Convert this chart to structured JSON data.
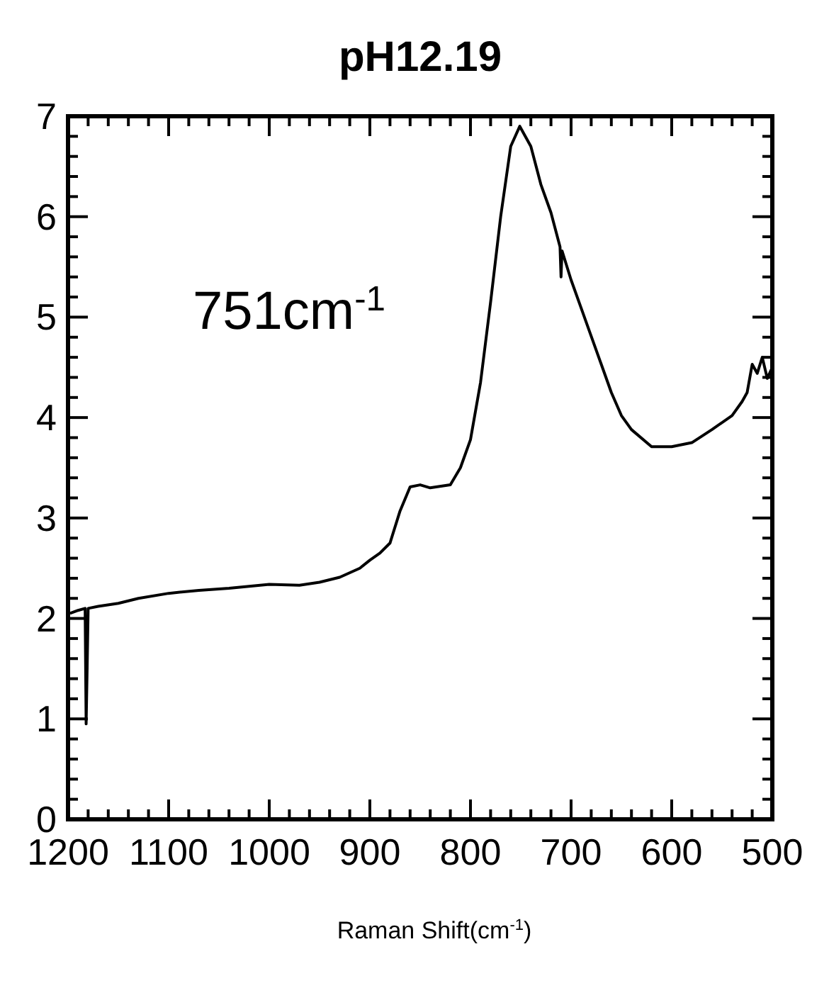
{
  "chart_data": {
    "type": "line",
    "title": "pH12.19",
    "xlabel": "Raman Shift(cm$^{-1}$)",
    "annotations": [
      "751cm$^{-1}$"
    ],
    "xlim": [
      1200,
      500
    ],
    "xticks": [
      1200,
      {
        "value": 1180,
        "label": null
      },
      {
        "value": 1160,
        "label": null
      },
      {
        "value": 1140,
        "label": null
      },
      {
        "value": 1120,
        "label": null
      },
      1100,
      {
        "value": 1080,
        "label": null
      },
      {
        "value": 1060,
        "label": null
      },
      {
        "value": 1040,
        "label": null
      },
      {
        "value": 1020,
        "label": null
      },
      1000,
      {
        "value": 980,
        "label": null
      },
      {
        "value": 960,
        "label": null
      },
      {
        "value": 940,
        "label": null
      },
      {
        "value": 920,
        "label": null
      },
      900,
      {
        "value": 880,
        "label": null
      },
      {
        "value": 860,
        "label": null
      },
      {
        "value": 840,
        "label": null
      },
      {
        "value": 820,
        "label": null
      },
      800,
      {
        "value": 780,
        "label": null
      },
      {
        "value": 760,
        "label": null
      },
      {
        "value": 740,
        "label": null
      },
      {
        "value": 720,
        "label": null
      },
      700,
      {
        "value": 680,
        "label": null
      },
      {
        "value": 660,
        "label": null
      },
      {
        "value": 640,
        "label": null
      },
      {
        "value": 620,
        "label": null
      },
      600,
      {
        "value": 580,
        "label": null
      },
      {
        "value": 560,
        "label": null
      },
      {
        "value": 540,
        "label": null
      },
      {
        "value": 520,
        "label": null
      },
      500
    ],
    "ylim": [
      0,
      7
    ],
    "yticks": [
      0,
      {
        "value": 0.2,
        "label": null
      },
      {
        "value": 0.4,
        "label": null
      },
      {
        "value": 0.6,
        "label": null
      },
      {
        "value": 0.8,
        "label": null
      },
      1,
      {
        "value": 1.2,
        "label": null
      },
      {
        "value": 1.4,
        "label": null
      },
      {
        "value": 1.6,
        "label": null
      },
      {
        "value": 1.8,
        "label": null
      },
      2,
      {
        "value": 2.2,
        "label": null
      },
      {
        "value": 2.4,
        "label": null
      },
      {
        "value": 2.6,
        "label": null
      },
      {
        "value": 2.8,
        "label": null
      },
      3,
      {
        "value": 3.2,
        "label": null
      },
      {
        "value": 3.4,
        "label": null
      },
      {
        "value": 3.6,
        "label": null
      },
      {
        "value": 3.8,
        "label": null
      },
      4,
      {
        "value": 4.2,
        "label": null
      },
      {
        "value": 4.4,
        "label": null
      },
      {
        "value": 4.6,
        "label": null
      },
      {
        "value": 4.8,
        "label": null
      },
      5,
      {
        "value": 5.2,
        "label": null
      },
      {
        "value": 5.4,
        "label": null
      },
      {
        "value": 5.6,
        "label": null
      },
      {
        "value": 5.8,
        "label": null
      },
      6,
      {
        "value": 6.2,
        "label": null
      },
      {
        "value": 6.4,
        "label": null
      },
      {
        "value": 6.6,
        "label": null
      },
      {
        "value": 6.8,
        "label": null
      },
      7
    ],
    "grid": false,
    "marker": "none",
    "line_style": "solid",
    "series": [
      {
        "color": "#000000",
        "x": [
          1198,
          1190,
          1183,
          1182,
          1181,
          1180,
          1170,
          1150,
          1130,
          1100,
          1070,
          1040,
          1000,
          970,
          950,
          930,
          910,
          900,
          890,
          880,
          870,
          860,
          850,
          840,
          820,
          810,
          800,
          790,
          780,
          770,
          760,
          751,
          740,
          730,
          720,
          711,
          710,
          709,
          700,
          690,
          680,
          670,
          660,
          650,
          640,
          620,
          600,
          580,
          560,
          540,
          530,
          525,
          520,
          515,
          510,
          505,
          500
        ],
        "values": [
          2.05,
          2.08,
          2.1,
          0.95,
          1.5,
          2.1,
          2.12,
          2.15,
          2.2,
          2.25,
          2.28,
          2.3,
          2.34,
          2.33,
          2.36,
          2.41,
          2.5,
          2.58,
          2.65,
          2.75,
          3.07,
          3.31,
          3.33,
          3.3,
          3.33,
          3.5,
          3.78,
          4.35,
          5.15,
          6.0,
          6.7,
          6.9,
          6.7,
          6.32,
          6.04,
          5.7,
          5.4,
          5.66,
          5.37,
          5.09,
          4.81,
          4.53,
          4.25,
          4.02,
          3.88,
          3.71,
          3.71,
          3.75,
          3.88,
          4.02,
          4.16,
          4.25,
          4.53,
          4.44,
          4.6,
          4.39,
          4.5
        ]
      }
    ]
  }
}
